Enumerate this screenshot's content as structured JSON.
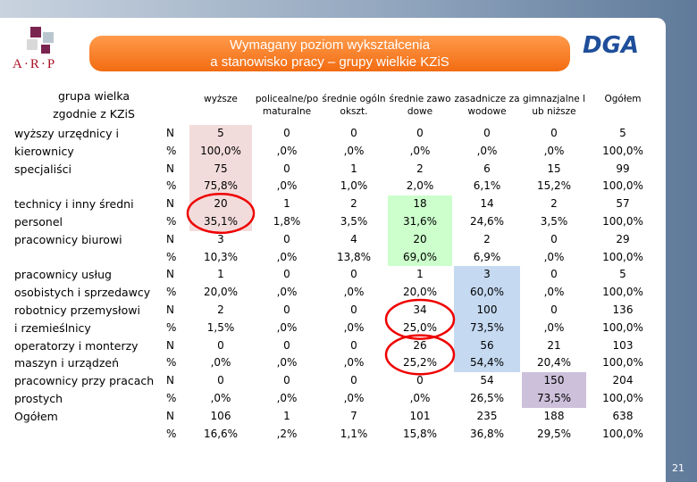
{
  "header": {
    "title_lines": [
      "Wymagany poziom wykształcenia",
      "a stanowisko pracy – grupy wielkie KZiS"
    ],
    "logo_left": "A·R·P",
    "logo_right": "DGA"
  },
  "table": {
    "corner_lines": [
      "grupa wielka",
      "zgodnie z KZiS"
    ],
    "columns": [
      "wyższe",
      "policealne/pomaturalne",
      "średnie ogólnokszt.",
      "średnie zawodowe",
      "zasadnicze zawodowe",
      "gimnazjalne lub niższe",
      "Ogółem"
    ],
    "measures": [
      "N",
      "%"
    ],
    "groups": [
      {
        "label_lines": [
          "wyższy urzędnicy i",
          "kierownicy"
        ],
        "n": [
          "5",
          "0",
          "0",
          "0",
          "0",
          "0",
          "5"
        ],
        "pct": [
          "100,0%",
          ",0%",
          ",0%",
          ",0%",
          ",0%",
          ",0%",
          "100,0%"
        ]
      },
      {
        "label_lines": [
          "specjaliści"
        ],
        "n": [
          "75",
          "0",
          "1",
          "2",
          "6",
          "15",
          "99"
        ],
        "pct": [
          "75,8%",
          ",0%",
          "1,0%",
          "2,0%",
          "6,1%",
          "15,2%",
          "100,0%"
        ]
      },
      {
        "label_lines": [
          "technicy i inny średni",
          "personel"
        ],
        "n": [
          "20",
          "1",
          "2",
          "18",
          "14",
          "2",
          "57"
        ],
        "pct": [
          "35,1%",
          "1,8%",
          "3,5%",
          "31,6%",
          "24,6%",
          "3,5%",
          "100,0%"
        ]
      },
      {
        "label_lines": [
          "pracownicy biurowi"
        ],
        "n": [
          "3",
          "0",
          "4",
          "20",
          "2",
          "0",
          "29"
        ],
        "pct": [
          "10,3%",
          ",0%",
          "13,8%",
          "69,0%",
          "6,9%",
          ",0%",
          "100,0%"
        ]
      },
      {
        "label_lines": [
          "pracownicy usług",
          "osobistych i sprzedawcy"
        ],
        "n": [
          "1",
          "0",
          "0",
          "1",
          "3",
          "0",
          "5"
        ],
        "pct": [
          "20,0%",
          ",0%",
          ",0%",
          "20,0%",
          "60,0%",
          ",0%",
          "100,0%"
        ]
      },
      {
        "label_lines": [
          "robotnicy przemysłowi",
          "i rzemieślnicy"
        ],
        "n": [
          "2",
          "0",
          "0",
          "34",
          "100",
          "0",
          "136"
        ],
        "pct": [
          "1,5%",
          ",0%",
          ",0%",
          "25,0%",
          "73,5%",
          ",0%",
          "100,0%"
        ]
      },
      {
        "label_lines": [
          "operatorzy i monterzy",
          "maszyn i urządzeń"
        ],
        "n": [
          "0",
          "0",
          "0",
          "26",
          "56",
          "21",
          "103"
        ],
        "pct": [
          ",0%",
          ",0%",
          ",0%",
          "25,2%",
          "54,4%",
          "20,4%",
          "100,0%"
        ]
      },
      {
        "label_lines": [
          "pracownicy przy pracach",
          "prostych"
        ],
        "n": [
          "0",
          "0",
          "0",
          "0",
          "54",
          "150",
          "204"
        ],
        "pct": [
          ",0%",
          ",0%",
          ",0%",
          ",0%",
          "26,5%",
          "73,5%",
          "100,0%"
        ]
      },
      {
        "label_lines": [
          "Ogółem"
        ],
        "n": [
          "106",
          "1",
          "7",
          "101",
          "235",
          "188",
          "638"
        ],
        "pct": [
          "16,6%",
          ",2%",
          "1,1%",
          "15,8%",
          "36,8%",
          "29,5%",
          "100,0%"
        ]
      }
    ]
  },
  "footer": {
    "page_number": "21"
  }
}
